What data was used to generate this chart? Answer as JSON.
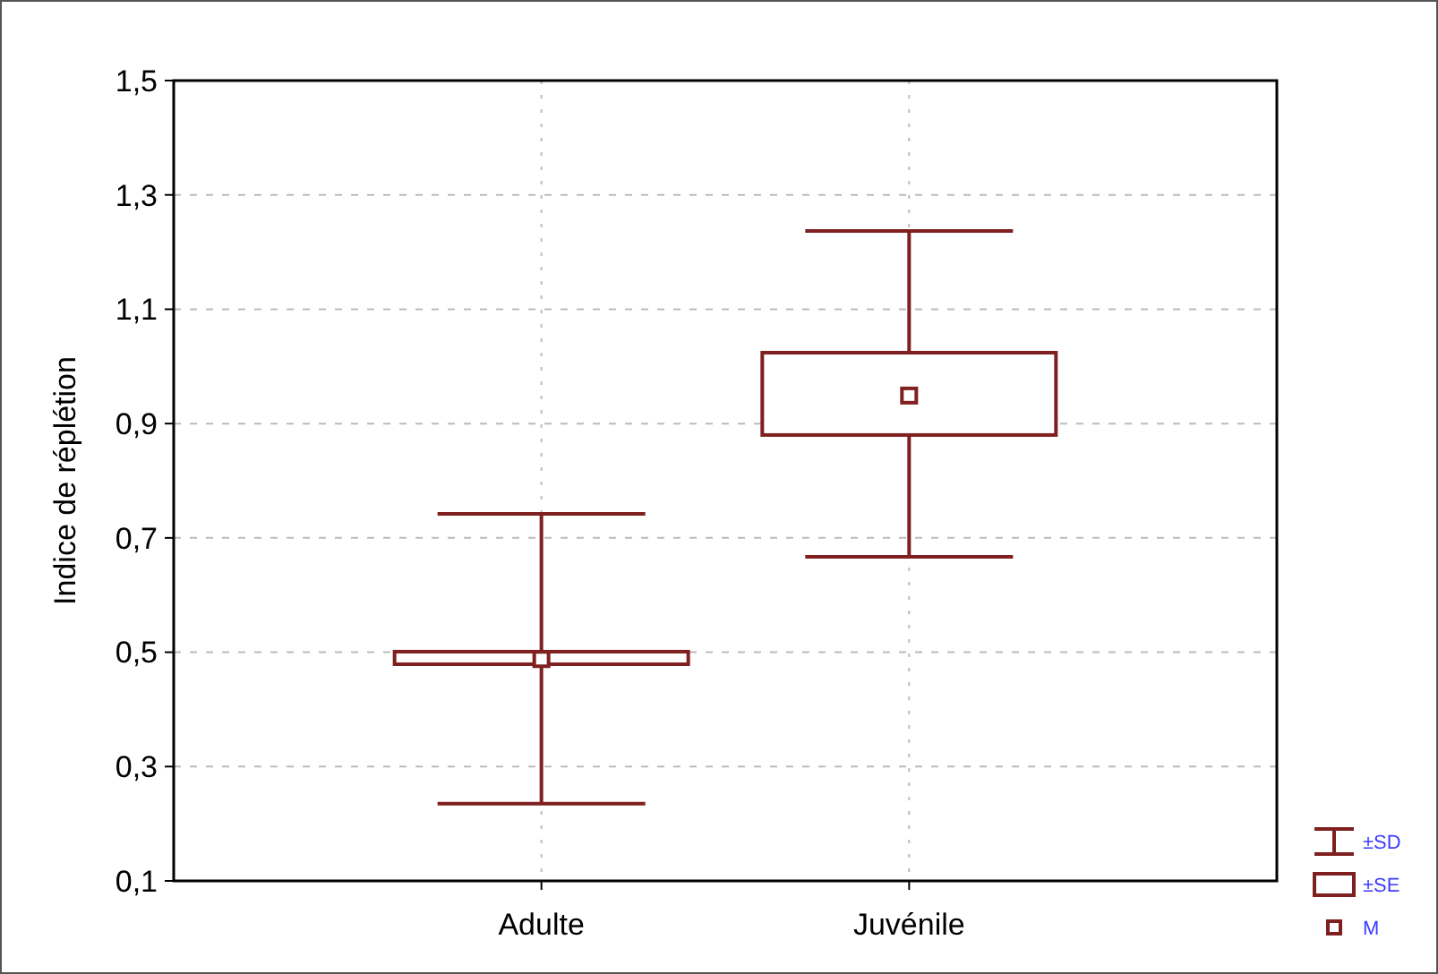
{
  "chart_data": {
    "type": "box",
    "ylabel": "Indice de réplétion",
    "categories": [
      "Adulte",
      "Juvénile"
    ],
    "boxes": [
      {
        "low": 0.235,
        "q1": 0.479,
        "median": 0.488,
        "q3": 0.501,
        "high": 0.742
      },
      {
        "low": 0.667,
        "q1": 0.88,
        "median": 0.949,
        "q3": 1.024,
        "high": 1.237
      }
    ],
    "color": "#7f1f1f",
    "ylim": [
      0.1,
      1.5
    ],
    "yticks": [
      {
        "value": 0.1,
        "label": "0,1"
      },
      {
        "value": 0.3,
        "label": "0,3"
      },
      {
        "value": 0.5,
        "label": "0,5"
      },
      {
        "value": 0.7,
        "label": "0,7"
      },
      {
        "value": 0.9,
        "label": "0,9"
      },
      {
        "value": 1.1,
        "label": "1,1"
      },
      {
        "value": 1.3,
        "label": "1,3"
      },
      {
        "value": 1.5,
        "label": "1,5"
      }
    ],
    "grid": true,
    "annotations": [
      "±SD",
      "±SE",
      "M"
    ]
  }
}
